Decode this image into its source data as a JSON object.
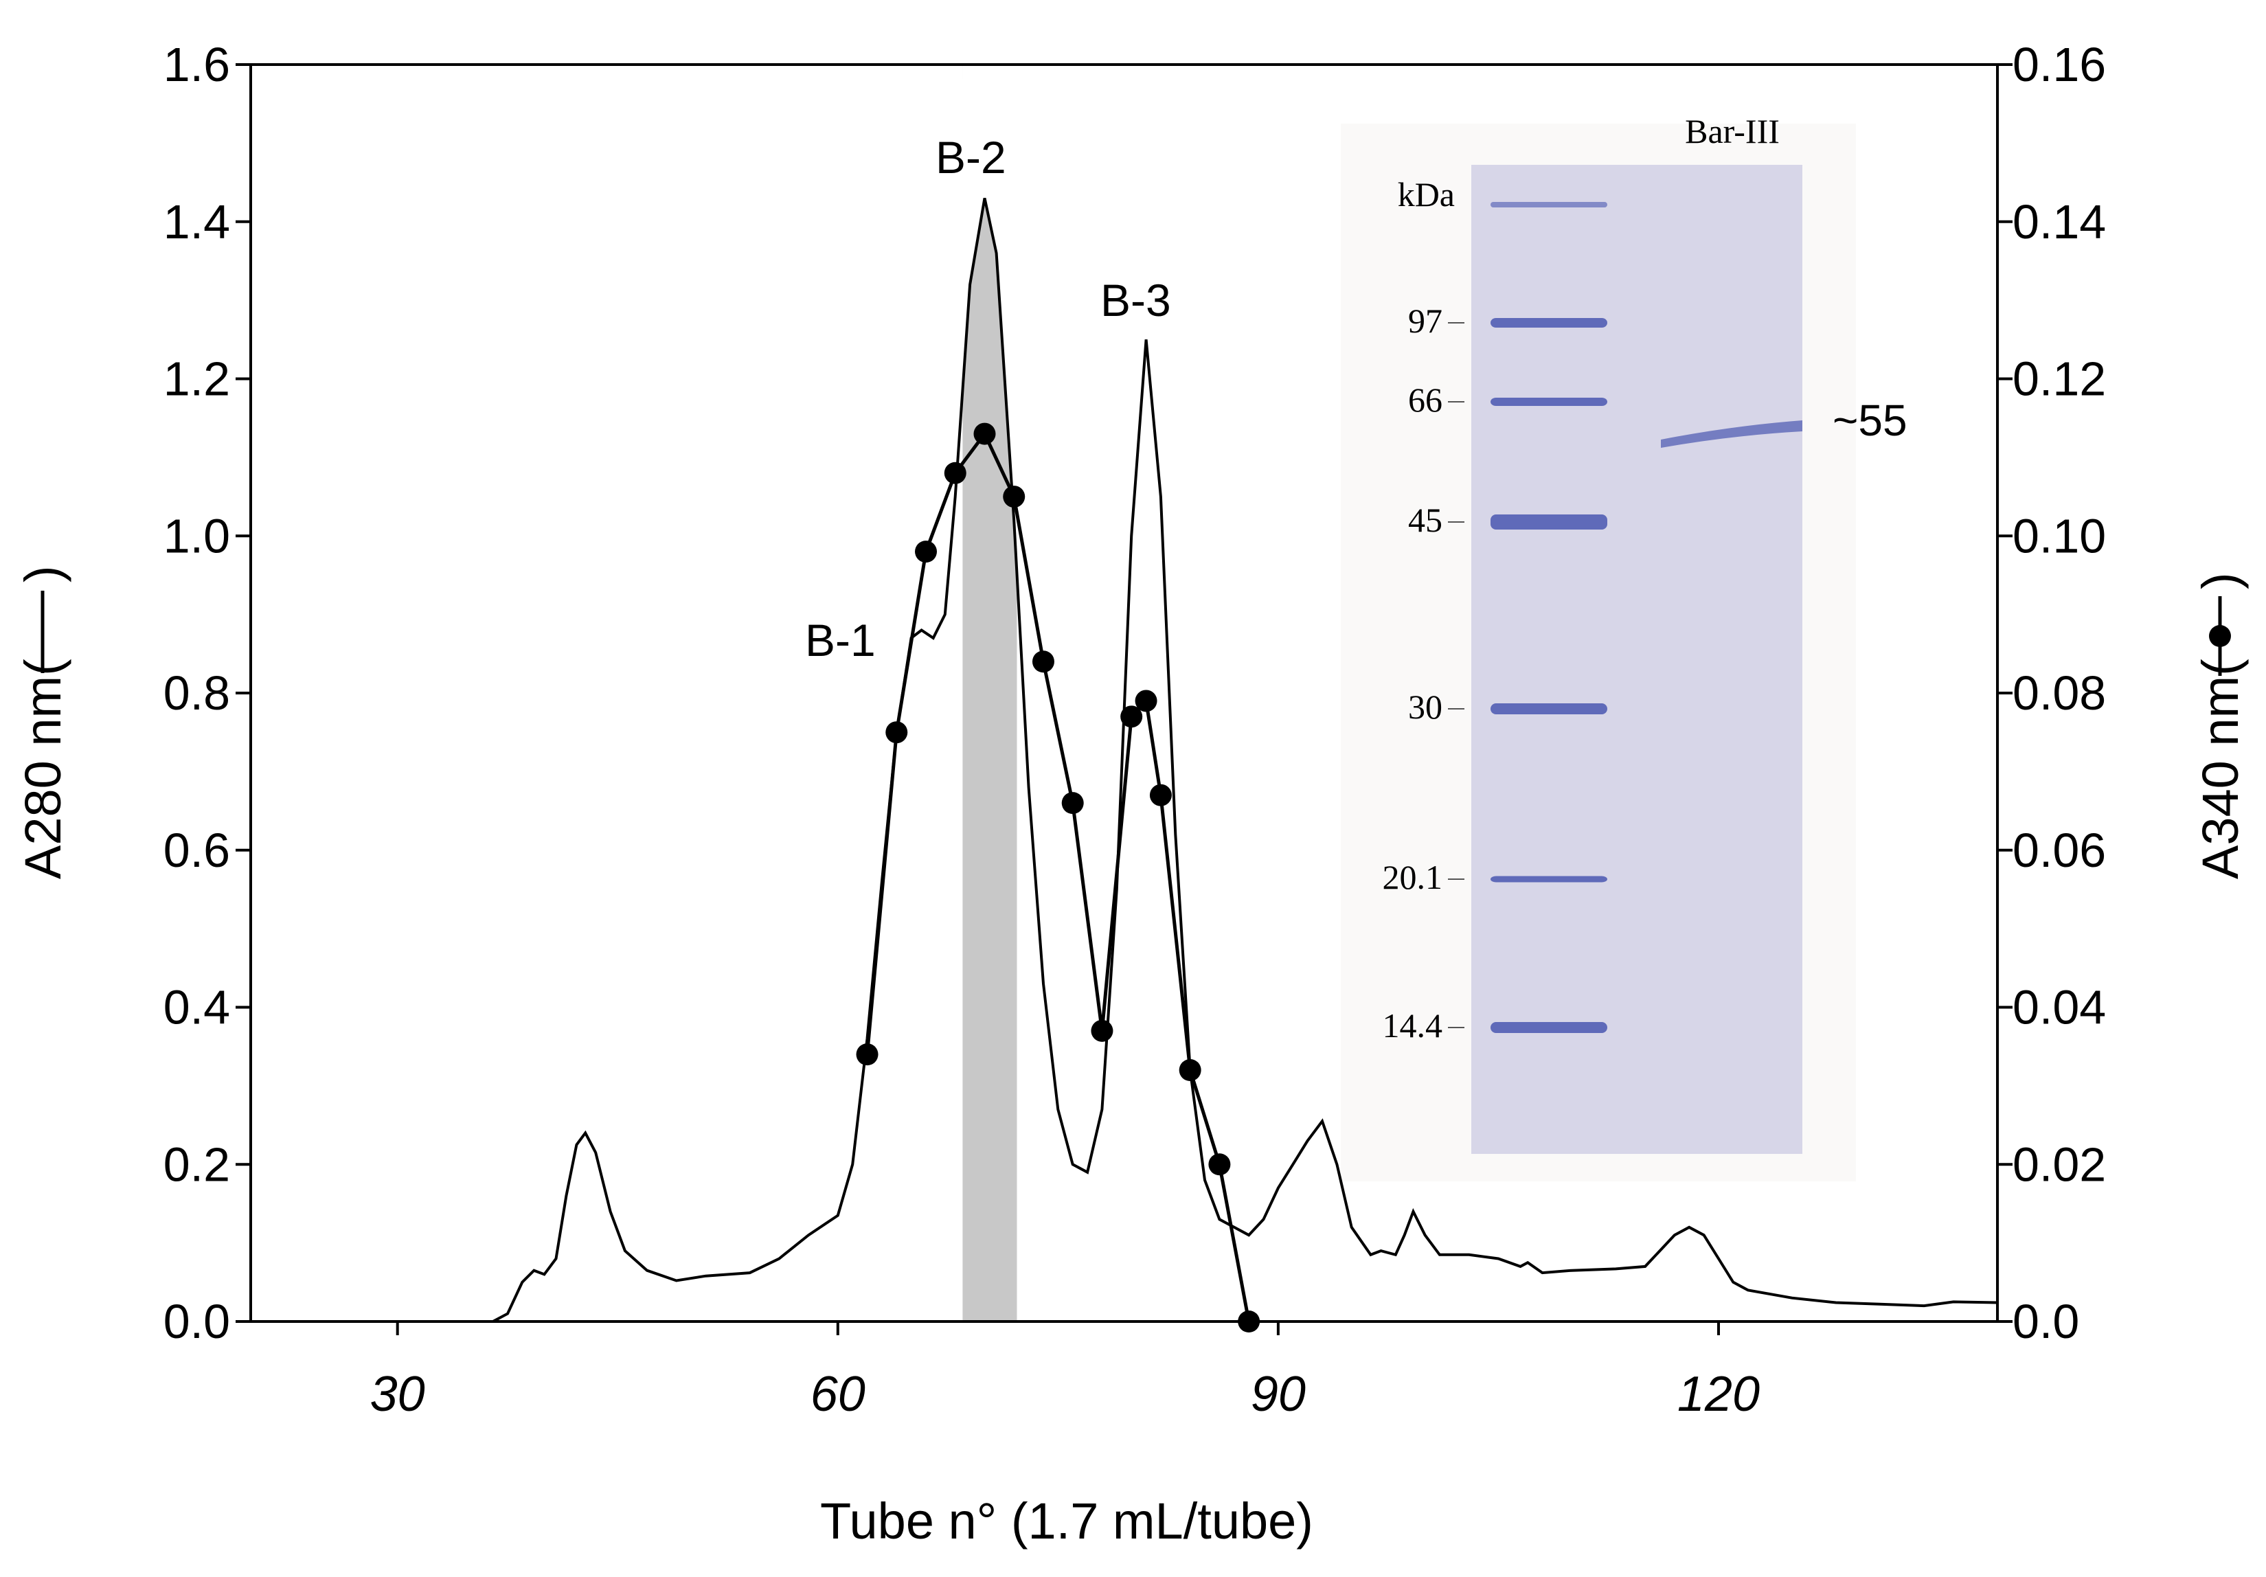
{
  "chart_data": {
    "type": "line",
    "x": {
      "label": "Tube n° (1.7 mL/tube)",
      "range": [
        20,
        139
      ],
      "ticks": [
        30,
        60,
        90,
        120
      ]
    },
    "y_left": {
      "label": "A280 nm(",
      "range": [
        0,
        1.6
      ],
      "ticks": [
        "0.0",
        "0.2",
        "0.4",
        "0.6",
        "0.8",
        "1.0",
        "1.2",
        "1.4",
        "1.6"
      ]
    },
    "y_right": {
      "label": "A340 nm(",
      "range": [
        0,
        0.16
      ],
      "ticks": [
        "0.0",
        "0.02",
        "0.04",
        "0.06",
        "0.08",
        "0.10",
        "0.12",
        "0.14",
        "0.16"
      ]
    },
    "shaded_fraction": {
      "x_range": [
        68.5,
        72.2
      ],
      "color": "#c8c8c8"
    },
    "series": [
      {
        "axis": "left",
        "style": "line",
        "points": [
          [
            20,
            0.0
          ],
          [
            35,
            0.0
          ],
          [
            36.5,
            0.0
          ],
          [
            37.5,
            0.01
          ],
          [
            38.5,
            0.05
          ],
          [
            39.3,
            0.065
          ],
          [
            40,
            0.06
          ],
          [
            40.8,
            0.08
          ],
          [
            41.5,
            0.16
          ],
          [
            42.2,
            0.225
          ],
          [
            42.8,
            0.24
          ],
          [
            43.5,
            0.215
          ],
          [
            44.5,
            0.14
          ],
          [
            45.5,
            0.09
          ],
          [
            47,
            0.065
          ],
          [
            49,
            0.052
          ],
          [
            51,
            0.058
          ],
          [
            54,
            0.062
          ],
          [
            56,
            0.08
          ],
          [
            58,
            0.11
          ],
          [
            60,
            0.135
          ],
          [
            61,
            0.2
          ],
          [
            62,
            0.36
          ],
          [
            63,
            0.56
          ],
          [
            64,
            0.75
          ],
          [
            65,
            0.87
          ],
          [
            65.7,
            0.88
          ],
          [
            66.5,
            0.87
          ],
          [
            67.3,
            0.9
          ],
          [
            68,
            1.05
          ],
          [
            69,
            1.32
          ],
          [
            70,
            1.43
          ],
          [
            70.8,
            1.36
          ],
          [
            72,
            1.02
          ],
          [
            73,
            0.68
          ],
          [
            74,
            0.43
          ],
          [
            75,
            0.27
          ],
          [
            76,
            0.2
          ],
          [
            77,
            0.19
          ],
          [
            78,
            0.27
          ],
          [
            79,
            0.55
          ],
          [
            80,
            1.0
          ],
          [
            81,
            1.25
          ],
          [
            82,
            1.05
          ],
          [
            83,
            0.62
          ],
          [
            84,
            0.32
          ],
          [
            85,
            0.18
          ],
          [
            86,
            0.13
          ],
          [
            87,
            0.12
          ],
          [
            88,
            0.11
          ],
          [
            89,
            0.13
          ],
          [
            90,
            0.17
          ],
          [
            91,
            0.2
          ],
          [
            92,
            0.23
          ],
          [
            93,
            0.255
          ],
          [
            94,
            0.2
          ],
          [
            95,
            0.12
          ],
          [
            96.3,
            0.085
          ],
          [
            97,
            0.09
          ],
          [
            98,
            0.085
          ],
          [
            98.6,
            0.11
          ],
          [
            99.2,
            0.14
          ],
          [
            100,
            0.11
          ],
          [
            101,
            0.085
          ],
          [
            103,
            0.085
          ],
          [
            105,
            0.08
          ],
          [
            106.5,
            0.07
          ],
          [
            107,
            0.075
          ],
          [
            108,
            0.062
          ],
          [
            110,
            0.065
          ],
          [
            113,
            0.067
          ],
          [
            115,
            0.07
          ],
          [
            116,
            0.09
          ],
          [
            117,
            0.11
          ],
          [
            118,
            0.12
          ],
          [
            119,
            0.11
          ],
          [
            120,
            0.08
          ],
          [
            121,
            0.05
          ],
          [
            122,
            0.04
          ],
          [
            125,
            0.03
          ],
          [
            128,
            0.024
          ],
          [
            131,
            0.022
          ],
          [
            134,
            0.02
          ],
          [
            136,
            0.025
          ],
          [
            139,
            0.024
          ]
        ]
      },
      {
        "axis": "right",
        "style": "line-marker",
        "points": [
          [
            62,
            0.034
          ],
          [
            64,
            0.075
          ],
          [
            66,
            0.098
          ],
          [
            68,
            0.108
          ],
          [
            70,
            0.113
          ],
          [
            72,
            0.105
          ],
          [
            74,
            0.084
          ],
          [
            76,
            0.066
          ],
          [
            78,
            0.037
          ],
          [
            80,
            0.077
          ],
          [
            81,
            0.079
          ],
          [
            82,
            0.067
          ],
          [
            84,
            0.032
          ],
          [
            86,
            0.02
          ],
          [
            88,
            0.0
          ]
        ]
      }
    ],
    "annotations": [
      "B-1",
      "B-2",
      "B-3"
    ],
    "inset": {
      "unit_label": "kDa",
      "lane_label": "Bar-III",
      "markers": [
        "97",
        "66",
        "45",
        "30",
        "20.1",
        "14.4"
      ],
      "band_label": "~55",
      "gel_color": "#d7d6e8",
      "band_color": "#4a57b0"
    }
  }
}
